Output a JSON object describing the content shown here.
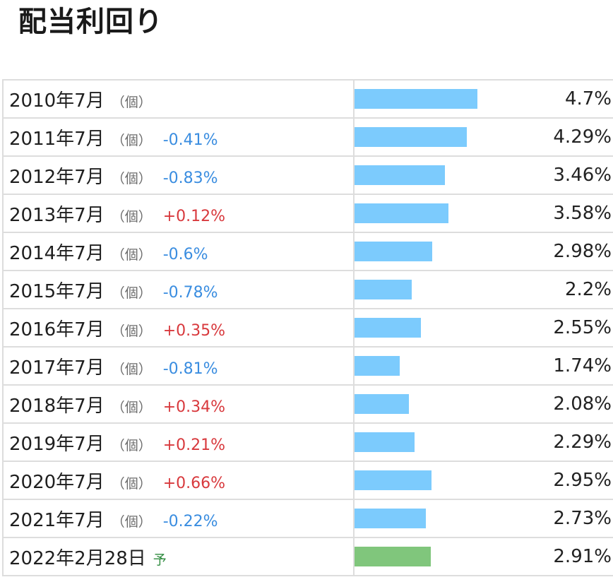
{
  "title": "配当利回り",
  "colors": {
    "bar_actual": "#7ccbfd",
    "bar_forecast": "#80c67c",
    "change_negative": "#3a8de0",
    "change_positive": "#d8393d"
  },
  "rows": [
    {
      "period": "2010年7月",
      "kind": "（個）",
      "change": "",
      "value": "4.7%"
    },
    {
      "period": "2011年7月",
      "kind": "（個）",
      "change": "-0.41%",
      "value": "4.29%"
    },
    {
      "period": "2012年7月",
      "kind": "（個）",
      "change": "-0.83%",
      "value": "3.46%"
    },
    {
      "period": "2013年7月",
      "kind": "（個）",
      "change": "+0.12%",
      "value": "3.58%"
    },
    {
      "period": "2014年7月",
      "kind": "（個）",
      "change": "-0.6%",
      "value": "2.98%"
    },
    {
      "period": "2015年7月",
      "kind": "（個）",
      "change": "-0.78%",
      "value": "2.2%"
    },
    {
      "period": "2016年7月",
      "kind": "（個）",
      "change": "+0.35%",
      "value": "2.55%"
    },
    {
      "period": "2017年7月",
      "kind": "（個）",
      "change": "-0.81%",
      "value": "1.74%"
    },
    {
      "period": "2018年7月",
      "kind": "（個）",
      "change": "+0.34%",
      "value": "2.08%"
    },
    {
      "period": "2019年7月",
      "kind": "（個）",
      "change": "+0.21%",
      "value": "2.29%"
    },
    {
      "period": "2020年7月",
      "kind": "（個）",
      "change": "+0.66%",
      "value": "2.95%"
    },
    {
      "period": "2021年7月",
      "kind": "（個）",
      "change": "-0.22%",
      "value": "2.73%"
    },
    {
      "period": "2022年2月28日",
      "kind": "予",
      "change": "",
      "value": "2.91%",
      "forecast": true
    }
  ],
  "chart_data": {
    "type": "bar",
    "title": "配当利回り",
    "categories": [
      "2010年7月",
      "2011年7月",
      "2012年7月",
      "2013年7月",
      "2014年7月",
      "2015年7月",
      "2016年7月",
      "2017年7月",
      "2018年7月",
      "2019年7月",
      "2020年7月",
      "2021年7月",
      "2022年2月28日"
    ],
    "values": [
      4.7,
      4.29,
      3.46,
      3.58,
      2.98,
      2.2,
      2.55,
      1.74,
      2.08,
      2.29,
      2.95,
      2.73,
      2.91
    ],
    "unit": "%"
  }
}
